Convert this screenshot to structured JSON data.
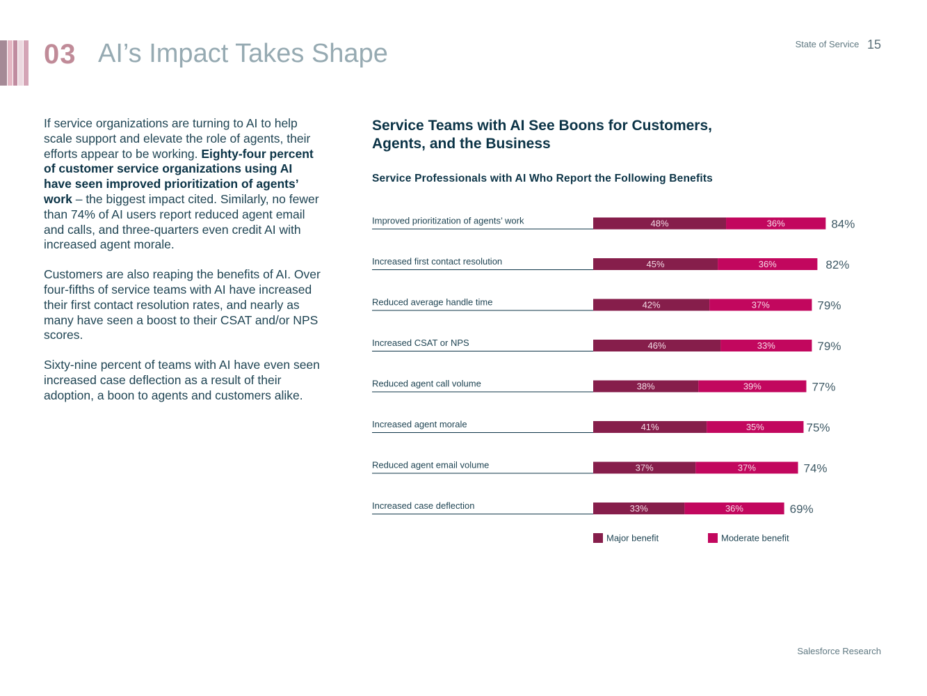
{
  "header": {
    "section_number": "03",
    "title": "AI’s Impact Takes Shape",
    "report_name": "State of Service",
    "page_number": "15"
  },
  "colors": {
    "stripe_1": "#a58a96",
    "stripe_2": "#e4b6c3",
    "stripe_3": "#c08b9f",
    "stripe_4": "#ecd9e0",
    "stripe_5": "#d4a5b6",
    "major": "#861e4b",
    "moderate": "#c2075e",
    "axis_line": "#0b3346"
  },
  "body": {
    "p1_a": "If service organizations are turning to AI to help scale support and elevate the role of agents, their efforts appear to be working. ",
    "p1_bold": "Eighty-four percent of customer service organizations using AI have seen improved prioritization of agents’ work",
    "p1_b": " – the biggest impact cited. Similarly, no fewer than 74% of AI users report reduced agent email and calls, and three-quarters even credit AI with increased agent morale.",
    "p2": "Customers are also reaping the benefits of AI. Over four-fifths of service teams with AI have increased their first contact resolution rates, and nearly as many have seen a boost to their CSAT and/or NPS scores.",
    "p3": "Sixty-nine percent of teams with AI have even seen increased case deflection as a result of their adoption, a boon to agents and customers alike."
  },
  "chart_data": {
    "type": "bar",
    "orientation": "horizontal",
    "stacked": true,
    "title": "Service Teams with AI See Boons for Customers, Agents, and the Business",
    "subtitle": "Service Professionals with AI Who Report the Following Benefits",
    "categories": [
      "Improved prioritization of agents’ work",
      "Increased first contact resolution",
      "Reduced average handle time",
      "Increased CSAT or NPS",
      "Reduced agent call volume",
      "Increased agent morale",
      "Reduced agent email volume",
      "Increased case deflection"
    ],
    "series": [
      {
        "name": "Major benefit",
        "values": [
          48,
          45,
          42,
          46,
          38,
          41,
          37,
          33
        ]
      },
      {
        "name": "Moderate benefit",
        "values": [
          36,
          36,
          37,
          33,
          39,
          35,
          37,
          36
        ]
      }
    ],
    "totals": [
      84,
      82,
      79,
      79,
      77,
      75,
      74,
      69
    ],
    "value_suffix": "%",
    "legend_position": "bottom",
    "xlabel": "",
    "ylabel": ""
  },
  "footer": {
    "source": "Salesforce Research"
  }
}
